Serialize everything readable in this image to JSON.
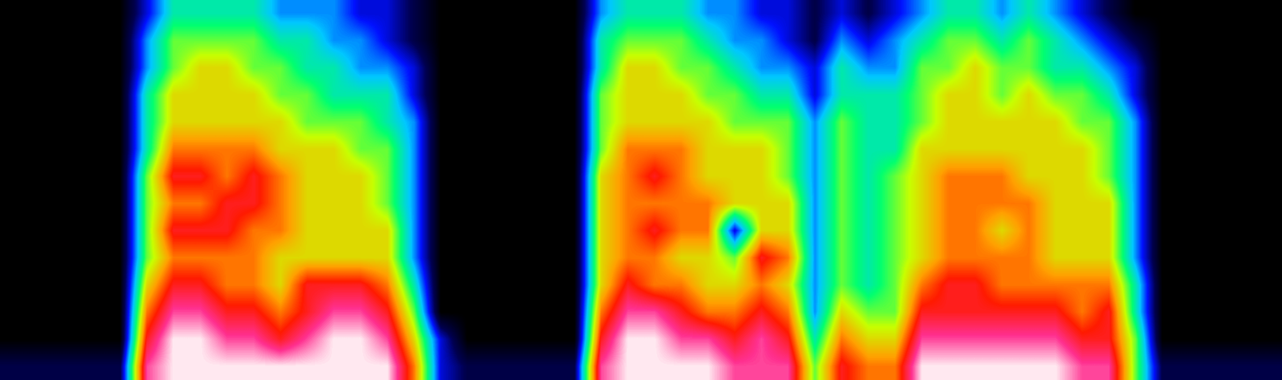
{
  "chart_data": {
    "type": "heatmap",
    "tick_labels": false,
    "color_range": [
      0,
      10
    ],
    "cells": [
      [
        0,
        0,
        0,
        0,
        0,
        2,
        4,
        4,
        4,
        4,
        3,
        3,
        3,
        2,
        2,
        1,
        0,
        0,
        0,
        0,
        0,
        0,
        3,
        4,
        4,
        4,
        3,
        3,
        2,
        2,
        1,
        2,
        1,
        2,
        3,
        4,
        4,
        3,
        4,
        3,
        2,
        1,
        0,
        0,
        0,
        0,
        0,
        0
      ],
      [
        0,
        0,
        0,
        0,
        0,
        3,
        5,
        5,
        5,
        5,
        4,
        4,
        3,
        3,
        2,
        1,
        0,
        0,
        0,
        0,
        0,
        0,
        4,
        5,
        5,
        5,
        4,
        3,
        3,
        2,
        1,
        3,
        2,
        3,
        4,
        5,
        5,
        4,
        5,
        4,
        3,
        2,
        1,
        0,
        0,
        0,
        0,
        0
      ],
      [
        0,
        0,
        0,
        0,
        0,
        3,
        5,
        6,
        6,
        5,
        5,
        4,
        4,
        3,
        3,
        2,
        0,
        0,
        0,
        0,
        0,
        0,
        4,
        6,
        6,
        5,
        5,
        4,
        3,
        3,
        2,
        4,
        3,
        3,
        5,
        5,
        6,
        5,
        5,
        4,
        4,
        3,
        2,
        0,
        0,
        0,
        0,
        0
      ],
      [
        0,
        0,
        0,
        0,
        0,
        4,
        6,
        6,
        6,
        6,
        5,
        5,
        4,
        4,
        4,
        2,
        0,
        0,
        0,
        0,
        0,
        0,
        5,
        6,
        6,
        6,
        5,
        5,
        4,
        4,
        2,
        4,
        4,
        4,
        5,
        6,
        6,
        5,
        6,
        5,
        5,
        4,
        2,
        0,
        0,
        0,
        0,
        0
      ],
      [
        0,
        0,
        0,
        0,
        0,
        4,
        6,
        6,
        6,
        6,
        6,
        5,
        5,
        5,
        4,
        3,
        0,
        0,
        0,
        0,
        0,
        0,
        5,
        6,
        6,
        6,
        6,
        5,
        5,
        5,
        3,
        5,
        4,
        4,
        5,
        6,
        6,
        6,
        6,
        6,
        5,
        5,
        3,
        0,
        0,
        0,
        0,
        0
      ],
      [
        0,
        0,
        0,
        0,
        0,
        4,
        7,
        7,
        7,
        7,
        6,
        6,
        6,
        5,
        5,
        3,
        0,
        0,
        0,
        0,
        0,
        0,
        5,
        7,
        7,
        7,
        6,
        6,
        6,
        5,
        3,
        5,
        4,
        4,
        6,
        6,
        6,
        6,
        6,
        6,
        6,
        5,
        3,
        0,
        0,
        0,
        0,
        0
      ],
      [
        0,
        0,
        0,
        0,
        0,
        5,
        8,
        8,
        7,
        8,
        7,
        6,
        6,
        6,
        5,
        3,
        0,
        0,
        0,
        0,
        0,
        0,
        6,
        7,
        8,
        7,
        6,
        6,
        6,
        5,
        3,
        5,
        4,
        5,
        6,
        7,
        7,
        7,
        6,
        6,
        6,
        5,
        3,
        0,
        0,
        0,
        0,
        0
      ],
      [
        0,
        0,
        0,
        0,
        0,
        5,
        7,
        7,
        8,
        8,
        7,
        6,
        6,
        6,
        5,
        3,
        0,
        0,
        0,
        0,
        0,
        0,
        6,
        7,
        7,
        7,
        7,
        6,
        6,
        6,
        3,
        5,
        4,
        5,
        6,
        7,
        7,
        7,
        7,
        6,
        6,
        6,
        3,
        0,
        0,
        0,
        0,
        0
      ],
      [
        0,
        0,
        0,
        0,
        0,
        5,
        8,
        8,
        8,
        7,
        7,
        6,
        6,
        6,
        6,
        3,
        0,
        0,
        0,
        0,
        0,
        0,
        6,
        7,
        8,
        7,
        7,
        2,
        6,
        6,
        3,
        5,
        4,
        5,
        6,
        7,
        7,
        6,
        7,
        6,
        6,
        6,
        3,
        0,
        0,
        0,
        0,
        0
      ],
      [
        0,
        0,
        0,
        0,
        0,
        5,
        7,
        7,
        7,
        7,
        6,
        6,
        6,
        6,
        6,
        3,
        0,
        0,
        0,
        0,
        0,
        0,
        6,
        7,
        7,
        6,
        6,
        5,
        8,
        7,
        3,
        5,
        4,
        5,
        6,
        7,
        7,
        7,
        7,
        6,
        6,
        6,
        3,
        0,
        0,
        0,
        0,
        0
      ],
      [
        0,
        0,
        0,
        0,
        0,
        6,
        8,
        8,
        7,
        7,
        6,
        8,
        8,
        8,
        7,
        4,
        0,
        0,
        0,
        0,
        0,
        0,
        6,
        8,
        7,
        7,
        6,
        6,
        7,
        6,
        3,
        5,
        4,
        5,
        7,
        8,
        8,
        7,
        7,
        7,
        7,
        7,
        4,
        0,
        0,
        0,
        0,
        0
      ],
      [
        0,
        0,
        0,
        0,
        0,
        7,
        9,
        9,
        8,
        8,
        7,
        8,
        9,
        9,
        8,
        5,
        0,
        0,
        0,
        0,
        0,
        0,
        7,
        9,
        9,
        8,
        7,
        7,
        8,
        7,
        3,
        6,
        5,
        5,
        8,
        8,
        8,
        8,
        8,
        8,
        7,
        8,
        4,
        0,
        0,
        0,
        0,
        0
      ],
      [
        0,
        0,
        0,
        0,
        0,
        8,
        10,
        10,
        9,
        9,
        8,
        9,
        10,
        10,
        9,
        6,
        2,
        0,
        0,
        0,
        0,
        0,
        8,
        10,
        10,
        9,
        9,
        8,
        9,
        8,
        4,
        7,
        6,
        6,
        9,
        9,
        9,
        9,
        9,
        9,
        8,
        8,
        5,
        0,
        0,
        0,
        0,
        0
      ],
      [
        1,
        1,
        1,
        1,
        1,
        9,
        10,
        10,
        10,
        10,
        10,
        10,
        10,
        10,
        10,
        7,
        2,
        1,
        1,
        1,
        1,
        1,
        9,
        10,
        10,
        10,
        10,
        9,
        9,
        9,
        5,
        8,
        7,
        7,
        10,
        10,
        10,
        10,
        10,
        10,
        9,
        9,
        5,
        1,
        1,
        1,
        1,
        1
      ]
    ]
  }
}
